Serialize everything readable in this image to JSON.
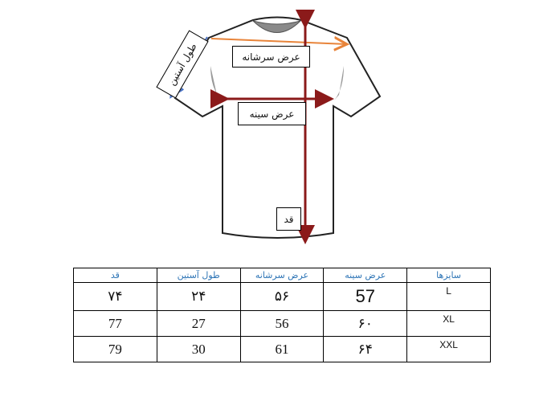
{
  "diagram": {
    "labels": {
      "shoulder_width": "عرض سرشانه",
      "chest_width": "عرض سینه",
      "length": "قد",
      "sleeve_length": "طول آستین"
    },
    "colors": {
      "shoulder_arrow": "#e8843a",
      "chest_arrow": "#8b1a1a",
      "length_arrow": "#8b1a1a",
      "sleeve_arrow": "#4a72c4"
    }
  },
  "table": {
    "headers": [
      "قد",
      "طول آستین",
      "عرض سرشانه",
      "عرض سینه",
      "سایزها"
    ],
    "rows": [
      [
        "۷۴",
        "۲۴",
        "۵۶",
        "57",
        "L"
      ],
      [
        "77",
        "27",
        "56",
        "۶۰",
        "XL"
      ],
      [
        "79",
        "30",
        "61",
        "۶۴",
        "XXL"
      ]
    ],
    "header_color": "#2e75b6"
  }
}
